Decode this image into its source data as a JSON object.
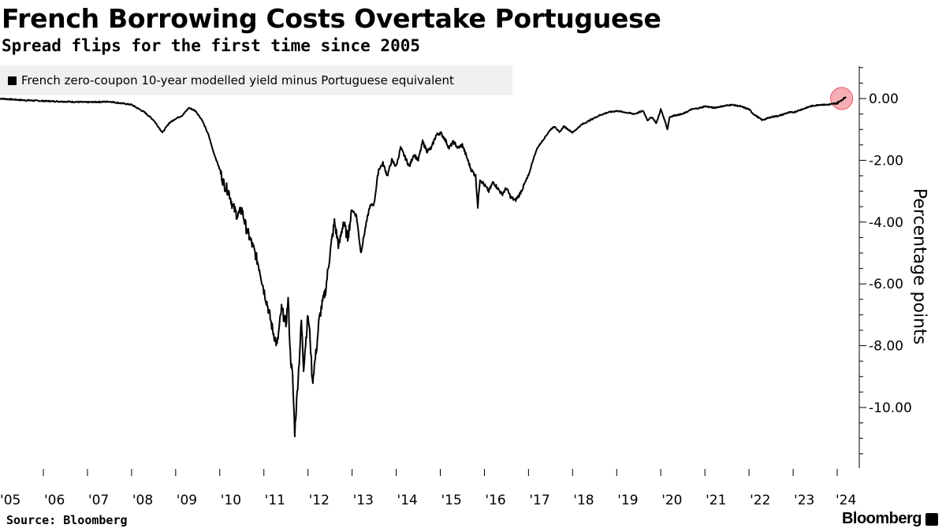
{
  "title": "French Borrowing Costs Overtake Portuguese",
  "subtitle": "Spread flips for the first time since 2005",
  "source": "Source: Bloomberg",
  "brand": "Bloomberg",
  "chart_data": {
    "type": "line",
    "title": "French Borrowing Costs Overtake Portuguese",
    "subtitle": "Spread flips for the first time since 2005",
    "ylabel": "Percentage points",
    "xlabel": "",
    "y_axis_side": "right",
    "ylim": [
      -12.0,
      1.0
    ],
    "xlim": [
      2005.0,
      2024.5
    ],
    "y_ticks": [
      0,
      -2,
      -4,
      -6,
      -8,
      -10
    ],
    "y_tick_labels": [
      "0.00",
      "-2.00",
      "-4.00",
      "-6.00",
      "-8.00",
      "-10.00"
    ],
    "x_ticks": [
      2005,
      2006,
      2007,
      2008,
      2009,
      2010,
      2011,
      2012,
      2013,
      2014,
      2015,
      2016,
      2017,
      2018,
      2019,
      2020,
      2021,
      2022,
      2023,
      2024
    ],
    "x_tick_labels": [
      "'05",
      "'06",
      "'07",
      "'08",
      "'09",
      "'10",
      "'11",
      "'12",
      "'13",
      "'14",
      "'15",
      "'16",
      "'17",
      "'18",
      "'19",
      "'20",
      "'21",
      "'22",
      "'23",
      "'24"
    ],
    "grid": false,
    "legend_position": "top-left",
    "series": [
      {
        "name": "French zero-coupon 10-year modelled yield minus Portuguese equivalent",
        "color": "#000000",
        "x": [
          2005.0,
          2005.5,
          2006.0,
          2006.5,
          2007.0,
          2007.5,
          2008.0,
          2008.3,
          2008.5,
          2008.7,
          2008.85,
          2009.0,
          2009.15,
          2009.3,
          2009.45,
          2009.6,
          2009.75,
          2009.85,
          2010.0,
          2010.1,
          2010.2,
          2010.3,
          2010.4,
          2010.5,
          2010.6,
          2010.7,
          2010.8,
          2010.9,
          2011.0,
          2011.1,
          2011.2,
          2011.3,
          2011.4,
          2011.5,
          2011.55,
          2011.6,
          2011.65,
          2011.7,
          2011.8,
          2011.85,
          2011.9,
          2012.0,
          2012.05,
          2012.1,
          2012.2,
          2012.25,
          2012.3,
          2012.4,
          2012.5,
          2012.6,
          2012.7,
          2012.8,
          2012.9,
          2013.0,
          2013.1,
          2013.2,
          2013.3,
          2013.4,
          2013.5,
          2013.6,
          2013.7,
          2013.8,
          2013.9,
          2014.0,
          2014.1,
          2014.2,
          2014.3,
          2014.4,
          2014.5,
          2014.6,
          2014.7,
          2014.8,
          2014.9,
          2015.0,
          2015.1,
          2015.2,
          2015.3,
          2015.4,
          2015.5,
          2015.6,
          2015.7,
          2015.8,
          2015.85,
          2015.9,
          2016.0,
          2016.1,
          2016.2,
          2016.3,
          2016.4,
          2016.5,
          2016.6,
          2016.7,
          2016.8,
          2016.9,
          2017.0,
          2017.1,
          2017.2,
          2017.3,
          2017.4,
          2017.5,
          2017.6,
          2017.7,
          2017.8,
          2017.9,
          2018.0,
          2018.2,
          2018.4,
          2018.6,
          2018.8,
          2019.0,
          2019.2,
          2019.4,
          2019.6,
          2019.7,
          2019.8,
          2019.9,
          2020.0,
          2020.1,
          2020.15,
          2020.2,
          2020.3,
          2020.5,
          2020.7,
          2020.9,
          2021.0,
          2021.2,
          2021.4,
          2021.6,
          2021.8,
          2022.0,
          2022.1,
          2022.3,
          2022.5,
          2022.7,
          2022.9,
          2023.0,
          2023.2,
          2023.4,
          2023.6,
          2023.8,
          2024.0,
          2024.1,
          2024.2
        ],
        "values": [
          0.0,
          -0.05,
          -0.08,
          -0.1,
          -0.12,
          -0.1,
          -0.2,
          -0.45,
          -0.7,
          -1.1,
          -0.8,
          -0.65,
          -0.55,
          -0.3,
          -0.4,
          -0.7,
          -1.2,
          -1.7,
          -2.3,
          -2.8,
          -3.0,
          -3.5,
          -3.8,
          -3.6,
          -4.2,
          -4.6,
          -5.0,
          -5.5,
          -6.2,
          -6.8,
          -7.5,
          -8.0,
          -6.8,
          -7.3,
          -6.5,
          -8.3,
          -9.0,
          -10.8,
          -8.5,
          -7.2,
          -8.7,
          -7.0,
          -7.8,
          -9.2,
          -8.0,
          -7.2,
          -6.8,
          -6.2,
          -5.0,
          -4.0,
          -4.8,
          -4.0,
          -4.5,
          -3.6,
          -3.8,
          -5.0,
          -4.2,
          -3.5,
          -3.4,
          -2.3,
          -2.1,
          -2.5,
          -2.0,
          -2.2,
          -1.6,
          -1.9,
          -2.2,
          -1.8,
          -2.0,
          -1.4,
          -1.7,
          -1.6,
          -1.2,
          -1.1,
          -1.3,
          -1.6,
          -1.4,
          -1.6,
          -1.5,
          -1.9,
          -2.3,
          -2.5,
          -3.5,
          -2.6,
          -2.8,
          -3.0,
          -2.7,
          -2.9,
          -3.1,
          -2.9,
          -3.2,
          -3.3,
          -3.1,
          -2.8,
          -2.5,
          -2.0,
          -1.6,
          -1.4,
          -1.2,
          -1.0,
          -0.9,
          -1.1,
          -0.9,
          -1.0,
          -1.1,
          -0.85,
          -0.7,
          -0.55,
          -0.45,
          -0.4,
          -0.45,
          -0.5,
          -0.4,
          -0.7,
          -0.6,
          -0.8,
          -0.35,
          -0.75,
          -1.0,
          -0.6,
          -0.55,
          -0.5,
          -0.35,
          -0.3,
          -0.25,
          -0.3,
          -0.25,
          -0.2,
          -0.25,
          -0.35,
          -0.5,
          -0.7,
          -0.6,
          -0.55,
          -0.45,
          -0.45,
          -0.35,
          -0.25,
          -0.2,
          -0.2,
          -0.15,
          -0.05,
          0.05
        ]
      }
    ],
    "annotations": [
      {
        "type": "circle-marker",
        "x": 2024.1,
        "y": 0.0,
        "color": "#f4a0a8"
      }
    ]
  }
}
